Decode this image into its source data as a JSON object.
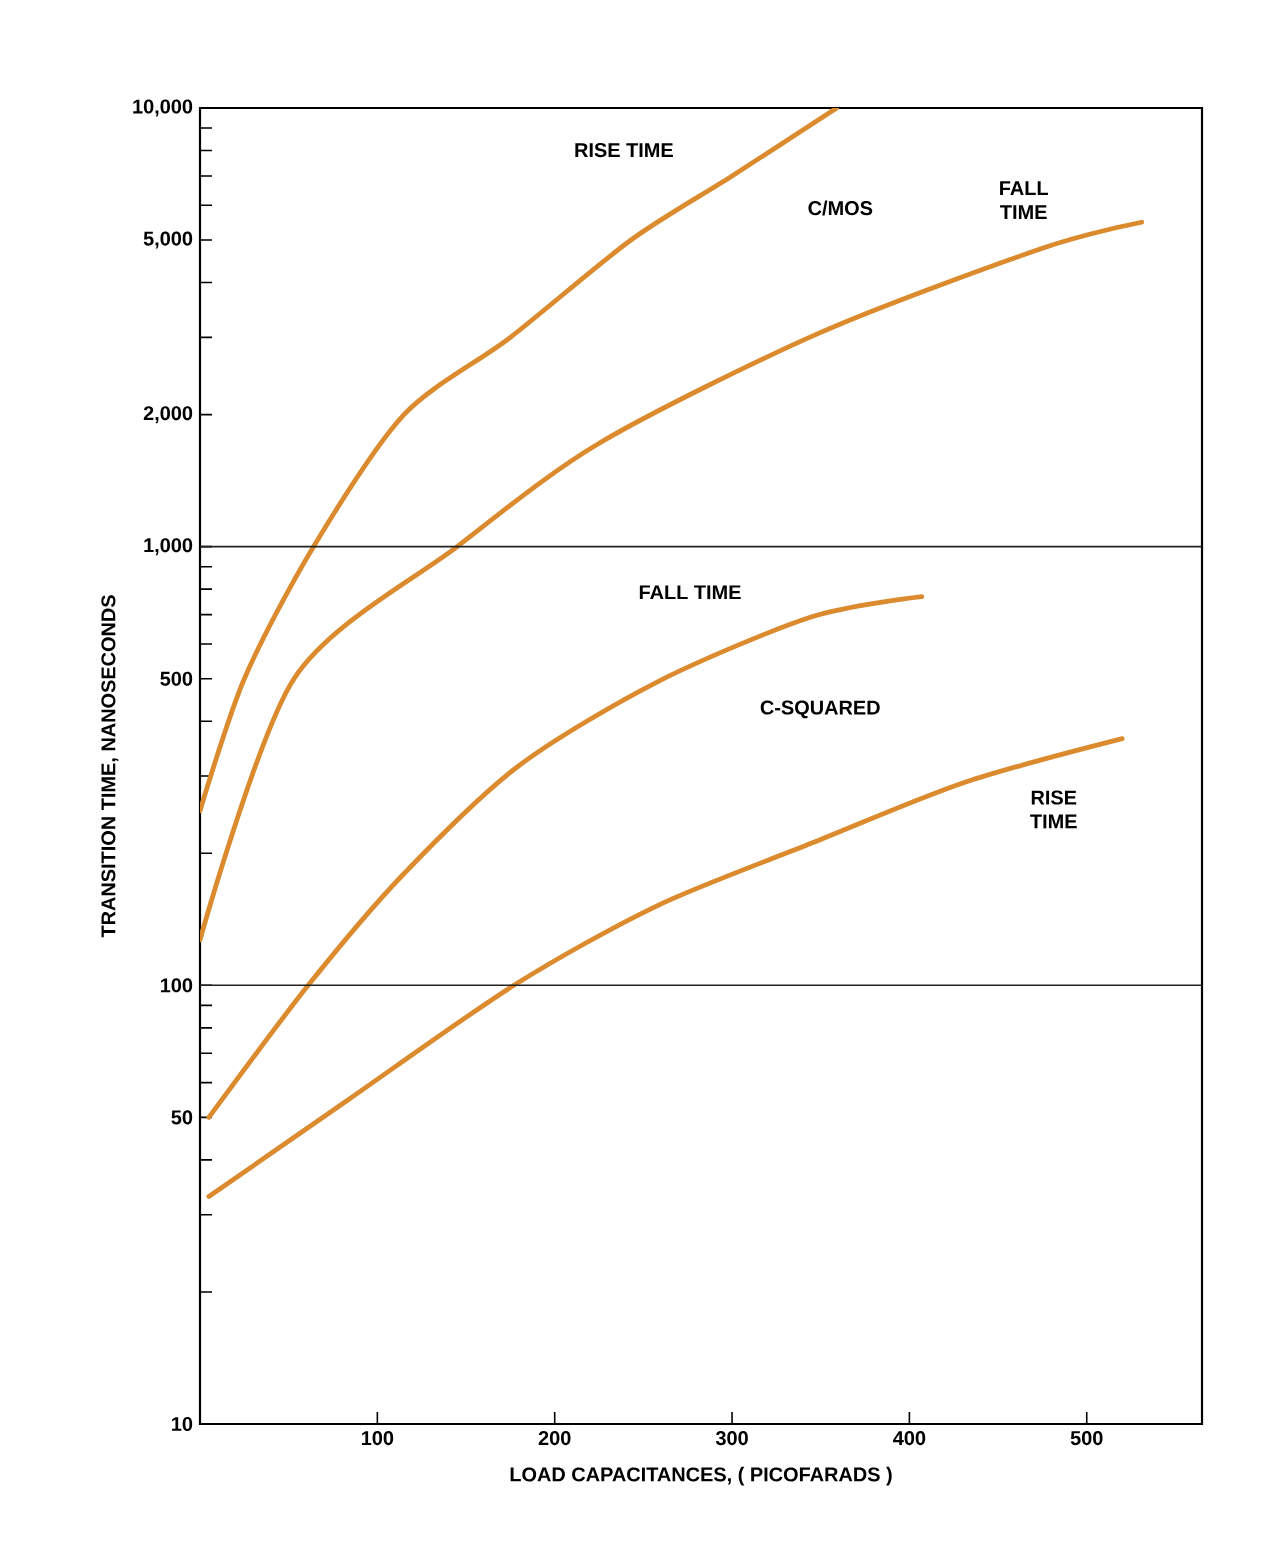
{
  "chart_data": {
    "type": "line",
    "xlabel": "LOAD CAPACITANCES, ( PICOFARADS )",
    "ylabel": "TRANSITION TIME, NANOSECONDS",
    "xlim": [
      0,
      565
    ],
    "xticks": [
      100,
      200,
      300,
      400,
      500
    ],
    "ylim": [
      10,
      10000
    ],
    "log": "y",
    "yticks": [
      10,
      {
        "value": 20,
        "label": null
      },
      {
        "value": 30,
        "label": null
      },
      {
        "value": 40,
        "label": null
      },
      50,
      {
        "value": 60,
        "label": null
      },
      {
        "value": 70,
        "label": null
      },
      {
        "value": 80,
        "label": null
      },
      {
        "value": 90,
        "label": null
      },
      100,
      {
        "value": 200,
        "label": null
      },
      {
        "value": 300,
        "label": null
      },
      {
        "value": 400,
        "label": null
      },
      500,
      {
        "value": 600,
        "label": null
      },
      {
        "value": 700,
        "label": null
      },
      {
        "value": 800,
        "label": null
      },
      {
        "value": 900,
        "label": null
      },
      {
        "value": 1000,
        "label": "1,000"
      },
      {
        "value": 2000,
        "label": "2,000"
      },
      {
        "value": 3000,
        "label": null
      },
      {
        "value": 4000,
        "label": null
      },
      {
        "value": 5000,
        "label": "5,000"
      },
      {
        "value": 6000,
        "label": null
      },
      {
        "value": 7000,
        "label": null
      },
      {
        "value": 8000,
        "label": null
      },
      {
        "value": 9000,
        "label": null
      },
      {
        "value": 10000,
        "label": "10,000"
      }
    ],
    "ref_lines": [
      {
        "axis": "y",
        "value": 1000,
        "color": "#222222"
      },
      {
        "axis": "y",
        "value": 100,
        "color": "#222222"
      }
    ],
    "series": [
      {
        "name": "RISE TIME",
        "color": "#dc8a2e",
        "x": [
          0,
          25,
          64,
          115,
          175,
          243,
          300,
          359
        ],
        "values": [
          250,
          500,
          1000,
          2000,
          3000,
          5000,
          7000,
          10000
        ]
      },
      {
        "name": "FALL TIME",
        "color": "#dc8a2e",
        "x": [
          0,
          53,
          145,
          226,
          350,
          475,
          531
        ],
        "values": [
          127,
          500,
          1000,
          1730,
          3080,
          4790,
          5490
        ]
      },
      {
        "name": "FALL TIME",
        "color": "#dc8a2e",
        "x": [
          5,
          61,
          114,
          179,
          258,
          345,
          407
        ],
        "values": [
          50,
          100,
          178,
          315,
          492,
          692,
          769
        ]
      },
      {
        "name": "RISE TIME",
        "color": "#dc8a2e",
        "x": [
          5,
          84,
          177,
          258,
          345,
          431,
          520
        ],
        "values": [
          33,
          55,
          100,
          152,
          211,
          290,
          365
        ]
      }
    ],
    "annotations": [
      "C/MOS",
      "C-SQUARED"
    ]
  }
}
